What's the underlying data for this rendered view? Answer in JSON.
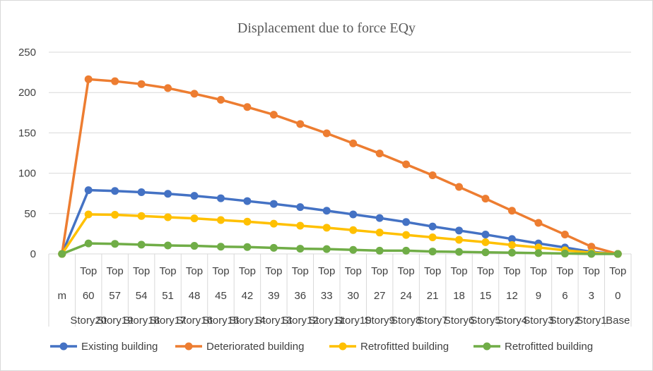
{
  "chart_data": {
    "type": "line",
    "title": "Displacement due to force EQy",
    "xlabel": "",
    "ylabel": "",
    "ylim": [
      0,
      250
    ],
    "yticks": [
      0,
      50,
      100,
      150,
      200,
      250
    ],
    "grid": true,
    "legend_position": "bottom",
    "categories": [
      [
        "m"
      ],
      [
        "Top",
        "60",
        "Story20"
      ],
      [
        "Top",
        "57",
        "Story19"
      ],
      [
        "Top",
        "54",
        "Story18"
      ],
      [
        "Top",
        "51",
        "Story17"
      ],
      [
        "Top",
        "48",
        "Story16"
      ],
      [
        "Top",
        "45",
        "Story15"
      ],
      [
        "Top",
        "42",
        "Story14"
      ],
      [
        "Top",
        "39",
        "Story13"
      ],
      [
        "Top",
        "36",
        "Story12"
      ],
      [
        "Top",
        "33",
        "Story11"
      ],
      [
        "Top",
        "30",
        "Story10"
      ],
      [
        "Top",
        "27",
        "Story9"
      ],
      [
        "Top",
        "24",
        "Story8"
      ],
      [
        "Top",
        "21",
        "Story7"
      ],
      [
        "Top",
        "18",
        "Story6"
      ],
      [
        "Top",
        "15",
        "Story5"
      ],
      [
        "Top",
        "12",
        "Story4"
      ],
      [
        "Top",
        "9",
        "Story3"
      ],
      [
        "Top",
        "6",
        "Story2"
      ],
      [
        "Top",
        "3",
        "Story1"
      ],
      [
        "Top",
        "0",
        "Base"
      ]
    ],
    "series": [
      {
        "name": "Existing building",
        "color": "#4472c4",
        "values": [
          0,
          79,
          78,
          76.5,
          74.5,
          72,
          69,
          65.5,
          62,
          58,
          53.5,
          49,
          44.5,
          39.5,
          34,
          29,
          24,
          18.5,
          13,
          8,
          2.5,
          0
        ]
      },
      {
        "name": "Deteriorated building",
        "color": "#ed7d31",
        "values": [
          0,
          216.5,
          214,
          210.5,
          205.5,
          198.5,
          191,
          182,
          172.5,
          161,
          149.5,
          137,
          124.5,
          111,
          97.5,
          83,
          68.5,
          53.5,
          38.5,
          24,
          9,
          0
        ]
      },
      {
        "name": "Retrofitted building",
        "color": "#ffc000",
        "values": [
          0,
          49,
          48.5,
          47,
          45.5,
          44,
          42,
          40,
          37.5,
          35,
          32.5,
          29.5,
          26.5,
          23.5,
          20.5,
          17.5,
          14.5,
          11,
          8,
          4.5,
          1.5,
          0
        ]
      },
      {
        "name": "Retrofitted building",
        "color": "#70ad47",
        "values": [
          0,
          13,
          12.5,
          11.5,
          10.5,
          10,
          9,
          8.5,
          7.5,
          6.5,
          6,
          5,
          4,
          4,
          3,
          2.5,
          2,
          1.5,
          1,
          0.5,
          0,
          0
        ]
      }
    ]
  }
}
